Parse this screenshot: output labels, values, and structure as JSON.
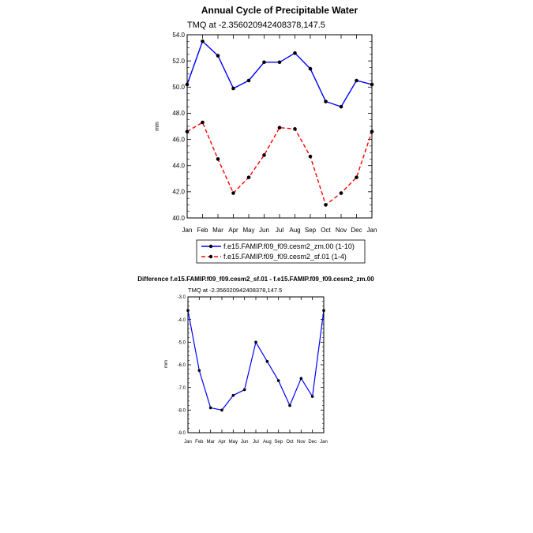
{
  "chart_data": [
    {
      "type": "line",
      "title": "Annual Cycle of Precipitable Water",
      "subtitle": "TMQ at -2.356020942408378,147.5",
      "ylabel": "mm",
      "xlabel": "",
      "categories": [
        "Jan",
        "Feb",
        "Mar",
        "Apr",
        "May",
        "Jun",
        "Jul",
        "Aug",
        "Sep",
        "Oct",
        "Nov",
        "Dec",
        "Jan"
      ],
      "ylim": [
        40,
        54
      ],
      "yticks": [
        "40.0",
        "42.0",
        "44.0",
        "46.0",
        "48.0",
        "50.0",
        "52.0",
        "54.0"
      ],
      "grid": false,
      "legend_position": "bottom",
      "series": [
        {
          "name": "f.e15.FAMIP.f09_f09.cesm2_zm.00 (1-10)",
          "color": "#0000ff",
          "dash": "solid",
          "values": [
            50.2,
            53.5,
            52.4,
            49.9,
            50.5,
            51.9,
            51.9,
            52.6,
            51.4,
            48.9,
            48.5,
            50.5,
            50.2
          ]
        },
        {
          "name": "f.e15.FAMIP.f09_f09.cesm2_sf.01 (1-4)",
          "color": "#ff0000",
          "dash": "dashed",
          "values": [
            46.6,
            47.3,
            44.5,
            41.9,
            43.1,
            44.8,
            46.9,
            46.8,
            44.7,
            41.0,
            41.9,
            43.1,
            46.6
          ]
        }
      ]
    },
    {
      "type": "line",
      "title": "Difference f.e15.FAMIP.f09_f09.cesm2_sf.01 - f.e15.FAMIP.f09_f09.cesm2_zm.00",
      "subtitle": "TMQ at -2.356020942408378,147.5",
      "ylabel": "mm",
      "xlabel": "",
      "categories": [
        "Jan",
        "Feb",
        "Mar",
        "Apr",
        "May",
        "Jun",
        "Jul",
        "Aug",
        "Sep",
        "Oct",
        "Nov",
        "Dec",
        "Jan"
      ],
      "ylim": [
        -9,
        -3
      ],
      "yticks": [
        "-9.0",
        "-8.0",
        "-7.0",
        "-6.0",
        "-5.0",
        "-4.0",
        "-3.0"
      ],
      "grid": false,
      "series": [
        {
          "color": "#0000ff",
          "dash": "solid",
          "values": [
            -3.6,
            -6.25,
            -7.9,
            -8.0,
            -7.35,
            -7.1,
            -5.0,
            -5.85,
            -6.7,
            -7.8,
            -6.6,
            -7.4,
            -3.6
          ]
        }
      ]
    }
  ]
}
